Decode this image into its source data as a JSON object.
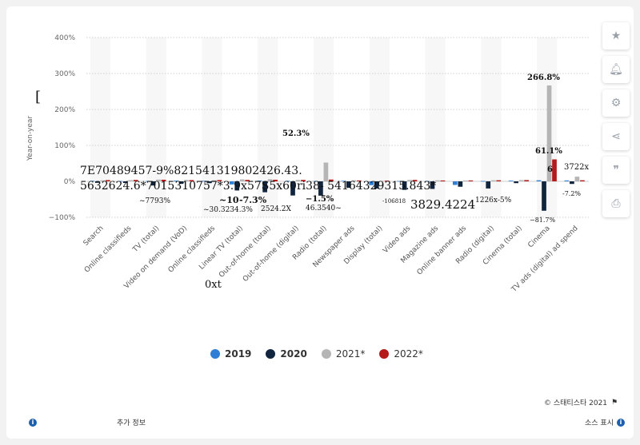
{
  "chart_data": {
    "type": "bar",
    "ylabel": "Year-on-year",
    "ylim": [
      -100,
      400
    ],
    "yticks": [
      "−100%",
      "0%",
      "100%",
      "200%",
      "300%",
      "400%"
    ],
    "categories": [
      "Search",
      "Online classifieds",
      "TV (total)",
      "Video on demand (VoD)",
      "Online classifieds",
      "Linear TV (total)",
      "Out-of-home (total)",
      "Out-of-home (digital)",
      "Radio (total)",
      "Newspaper ads",
      "Display (total)",
      "Video ads",
      "Magazine ads",
      "Online banner ads",
      "Radio (digital)",
      "Cinema (total)",
      "Cinema",
      "TV ads (digital) ad spend"
    ],
    "series": [
      {
        "name": "2019",
        "color": "#2f7fd6",
        "values": [
          1.5,
          1.0,
          1.0,
          2.0,
          1.5,
          -8.5,
          2.0,
          1.5,
          1.0,
          1.5,
          -10.5,
          1.0,
          1.0,
          -10.0,
          1.0,
          2.0,
          3.0,
          2.5
        ]
      },
      {
        "name": "2020",
        "color": "#11253e",
        "values": [
          -4.0,
          -4.5,
          -11.5,
          -7.0,
          -5.0,
          -25.4,
          -30.3,
          -39.3,
          -39.8,
          -18.0,
          -20.0,
          -23.7,
          -21.0,
          -15.0,
          -19.8,
          -5.0,
          -81.7,
          -7.2
        ]
      },
      {
        "name": "2021*",
        "color": "#b5b5b5",
        "values": [
          3.0,
          3.5,
          5.0,
          4.0,
          3.0,
          5.5,
          6.0,
          4.0,
          52.3,
          3.0,
          1.5,
          4.0,
          3.0,
          2.5,
          3.0,
          3.5,
          266.8,
          13.0
        ]
      },
      {
        "name": "2022*",
        "color": "#b41a1a",
        "values": [
          3.5,
          4.0,
          4.5,
          3.5,
          3.5,
          4.0,
          4.5,
          4.0,
          5.0,
          2.5,
          2.0,
          4.0,
          2.5,
          2.5,
          3.0,
          3.5,
          61.1,
          3.0
        ]
      }
    ],
    "data_labels": [
      "7E70489457-9%821541319802426.43.",
      "5632624.6*7015310757*3.9x57S5x60ri38- 54164329315.843*",
      "~7793%",
      "~10",
      "-7.3%",
      "~30.3234.3%",
      "2524.2X",
      "−1.5%",
      "46.3540~",
      "-106818",
      "3829.4224",
      "1226x-5%",
      "266.8%",
      "61.1%",
      "6",
      "3722x",
      "-7.2%",
      "−81.7%",
      "52.3%",
      "0xt",
      "["
    ]
  },
  "legend": {
    "items": [
      "2019",
      "2020",
      "2021*",
      "2022*"
    ]
  },
  "footer": {
    "credit": "© 스태티스타 2021",
    "info": "추가 정보",
    "source": "소스 표시"
  },
  "sidebar": {
    "icons": [
      "star-icon",
      "bell-icon",
      "gear-icon",
      "share-icon",
      "quote-icon",
      "print-icon"
    ]
  }
}
